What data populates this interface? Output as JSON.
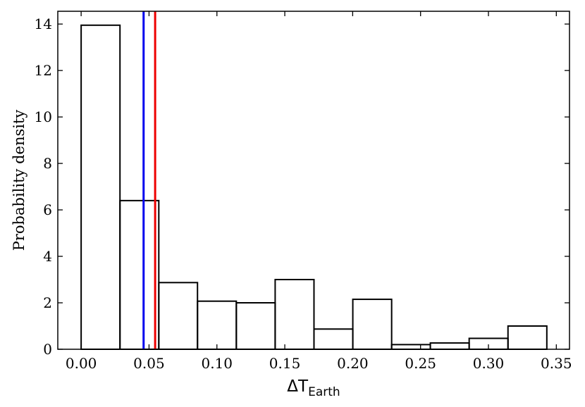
{
  "chart_data": {
    "type": "histogram",
    "title": "",
    "xlabel": "ΔT",
    "xlabel_subscript": "Earth",
    "ylabel": "Probability density",
    "xlim": [
      -0.0172,
      0.3597
    ],
    "ylim": [
      0,
      14.55
    ],
    "xticks": [
      0.0,
      0.05,
      0.1,
      0.15,
      0.2,
      0.25,
      0.3,
      0.35
    ],
    "xtick_labels": [
      "0.00",
      "0.05",
      "0.10",
      "0.15",
      "0.20",
      "0.25",
      "0.30",
      "0.35"
    ],
    "yticks": [
      0,
      2,
      4,
      6,
      8,
      10,
      12,
      14
    ],
    "ytick_labels": [
      "0",
      "2",
      "4",
      "6",
      "8",
      "10",
      "12",
      "14"
    ],
    "bin_edges": [
      0.0,
      0.0286,
      0.0572,
      0.0857,
      0.1143,
      0.1429,
      0.1715,
      0.2001,
      0.2287,
      0.2572,
      0.2858,
      0.3144,
      0.343
    ],
    "values": [
      13.95,
      6.4,
      2.87,
      2.07,
      2.0,
      3.0,
      0.87,
      2.15,
      0.2,
      0.27,
      0.47,
      1.0
    ],
    "vlines": [
      {
        "x": 0.046,
        "color": "#0000ee"
      },
      {
        "x": 0.0545,
        "color": "#ee0000"
      }
    ],
    "grid": false
  }
}
